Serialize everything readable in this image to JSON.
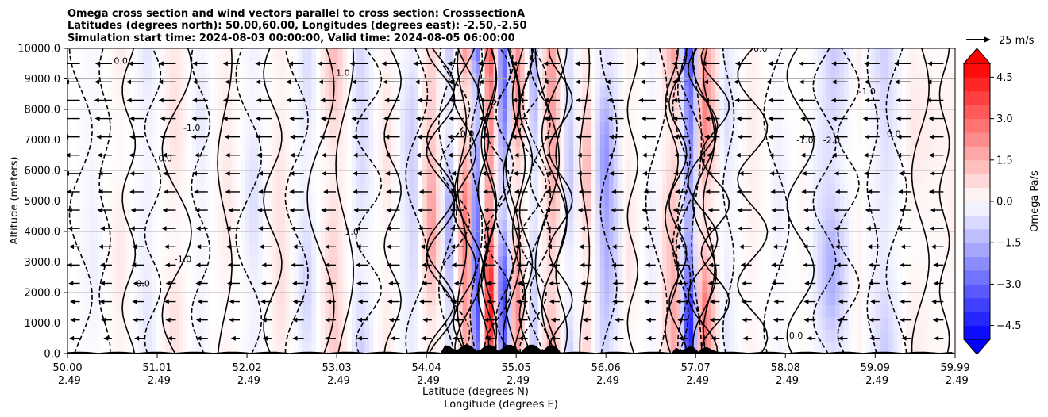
{
  "chart_data": {
    "type": "heatmap",
    "title_lines": [
      "Omega cross section and wind vectors parallel to cross section: CrosssectionA",
      "Latitudes (degrees north): 50.00,60.00, Longitudes (degrees east): -2.50,-2.50",
      "Simulation start time: 2024-08-03 00:00:00, Valid time: 2024-08-05 06:00:00"
    ],
    "xlabel_lines": [
      "Latitude (degrees N)",
      "Longitude (degrees E)"
    ],
    "ylabel": "Altitude (meters)",
    "x_ticks": [
      {
        "lat": "50.00",
        "lon": "-2.49"
      },
      {
        "lat": "51.01",
        "lon": "-2.49"
      },
      {
        "lat": "52.02",
        "lon": "-2.49"
      },
      {
        "lat": "53.03",
        "lon": "-2.49"
      },
      {
        "lat": "54.04",
        "lon": "-2.49"
      },
      {
        "lat": "55.05",
        "lon": "-2.49"
      },
      {
        "lat": "56.06",
        "lon": "-2.49"
      },
      {
        "lat": "57.07",
        "lon": "-2.49"
      },
      {
        "lat": "58.08",
        "lon": "-2.49"
      },
      {
        "lat": "59.09",
        "lon": "-2.49"
      },
      {
        "lat": "59.99",
        "lon": "-2.49"
      }
    ],
    "xlim": [
      50.0,
      59.99
    ],
    "y_ticks": [
      "0.0",
      "1000.0",
      "2000.0",
      "3000.0",
      "4000.0",
      "5000.0",
      "6000.0",
      "7000.0",
      "8000.0",
      "9000.0",
      "10000.0"
    ],
    "ylim": [
      0,
      10000
    ],
    "grid": "horizontal",
    "colorbar": {
      "label": "Omega Pa/s",
      "ticks": [
        "4.5",
        "3.0",
        "1.5",
        "0.0",
        "−1.5",
        "−3.0",
        "−4.5"
      ],
      "range": [
        -5.0,
        5.0
      ],
      "colors": {
        "low": "#0000ff",
        "mid": "#ffffff",
        "high": "#ff0000"
      },
      "extend": "both"
    },
    "vector_key": {
      "label": "25 m/s"
    },
    "omega_bands": [
      {
        "lat": 50.0,
        "omega": 0.1
      },
      {
        "lat": 50.3,
        "omega": -0.3
      },
      {
        "lat": 50.6,
        "omega": 0.4
      },
      {
        "lat": 50.9,
        "omega": -0.5
      },
      {
        "lat": 51.2,
        "omega": 0.6
      },
      {
        "lat": 51.5,
        "omega": -0.4
      },
      {
        "lat": 51.8,
        "omega": 0.5
      },
      {
        "lat": 52.1,
        "omega": -0.6
      },
      {
        "lat": 52.4,
        "omega": 0.7
      },
      {
        "lat": 52.7,
        "omega": -0.8
      },
      {
        "lat": 53.0,
        "omega": 1.2
      },
      {
        "lat": 53.3,
        "omega": -0.9
      },
      {
        "lat": 53.6,
        "omega": 0.6
      },
      {
        "lat": 53.9,
        "omega": -1.1
      },
      {
        "lat": 54.1,
        "omega": 2.0
      },
      {
        "lat": 54.3,
        "omega": -1.8
      },
      {
        "lat": 54.5,
        "omega": 3.2
      },
      {
        "lat": 54.6,
        "omega": -4.5
      },
      {
        "lat": 54.75,
        "omega": 4.8
      },
      {
        "lat": 54.9,
        "omega": -3.8
      },
      {
        "lat": 55.05,
        "omega": 2.4
      },
      {
        "lat": 55.25,
        "omega": -1.5
      },
      {
        "lat": 55.45,
        "omega": 2.2
      },
      {
        "lat": 55.65,
        "omega": -1.2
      },
      {
        "lat": 55.85,
        "omega": 1.4
      },
      {
        "lat": 56.05,
        "omega": -2.2
      },
      {
        "lat": 56.3,
        "omega": 0.5
      },
      {
        "lat": 56.6,
        "omega": -0.4
      },
      {
        "lat": 56.85,
        "omega": 2.0
      },
      {
        "lat": 57.0,
        "omega": -4.2
      },
      {
        "lat": 57.15,
        "omega": 2.6
      },
      {
        "lat": 57.4,
        "omega": -0.6
      },
      {
        "lat": 57.7,
        "omega": 0.4
      },
      {
        "lat": 58.0,
        "omega": -0.3
      },
      {
        "lat": 58.3,
        "omega": 0.2
      },
      {
        "lat": 58.6,
        "omega": -1.4
      },
      {
        "lat": 58.9,
        "omega": 0.3
      },
      {
        "lat": 59.2,
        "omega": -0.9
      },
      {
        "lat": 59.5,
        "omega": 0.4
      },
      {
        "lat": 59.8,
        "omega": 0.2
      },
      {
        "lat": 59.99,
        "omega": 0.3
      }
    ],
    "contour_labels": [
      {
        "text": "0.0",
        "lat": 50.6,
        "alt": 9500
      },
      {
        "text": "0.0",
        "lat": 51.1,
        "alt": 6300
      },
      {
        "text": "-1.0",
        "lat": 51.4,
        "alt": 7300
      },
      {
        "text": "1.0",
        "lat": 53.2,
        "alt": 3900
      },
      {
        "text": "0.0",
        "lat": 50.85,
        "alt": 2200
      },
      {
        "text": "-1.0",
        "lat": 51.3,
        "alt": 3000
      },
      {
        "text": "0.0",
        "lat": 54.5,
        "alt": 7100
      },
      {
        "text": "1.0",
        "lat": 53.1,
        "alt": 9100
      },
      {
        "text": "-1.0",
        "lat": 58.3,
        "alt": 6900
      },
      {
        "text": "-2.0",
        "lat": 58.6,
        "alt": 6900
      },
      {
        "text": "-1.0",
        "lat": 59.0,
        "alt": 8500
      },
      {
        "text": "0.0",
        "lat": 59.3,
        "alt": 7100
      },
      {
        "text": "0.0",
        "lat": 57.8,
        "alt": 9900
      },
      {
        "text": "0.0",
        "lat": 58.2,
        "alt": 500
      }
    ]
  }
}
